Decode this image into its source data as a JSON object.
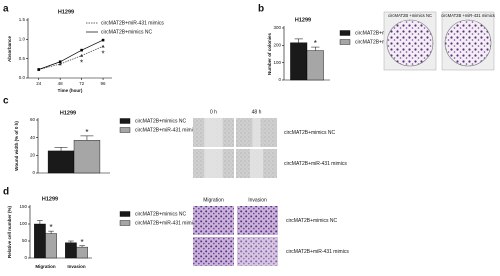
{
  "chart_data": [
    {
      "type": "line",
      "panel": "a",
      "title": "H1299",
      "x_label": "Time (hour)",
      "y_label": "Absorbance",
      "x": [
        24,
        48,
        72,
        96
      ],
      "xlim": [
        12,
        106
      ],
      "xticks": [
        24,
        48,
        72,
        96
      ],
      "ylim": [
        0,
        1.5
      ],
      "yticks": [
        {
          "value": 0,
          "label": "0.0"
        },
        0.5,
        {
          "value": 1,
          "label": "1.0"
        },
        1.5
      ],
      "series": [
        {
          "name": "circMAT2B+miR-431 mimics",
          "color": "#333333",
          "dash": true,
          "marker": "triangle",
          "values": [
            0.22,
            0.36,
            0.58,
            0.82
          ],
          "annotations": [
            null,
            null,
            "*",
            "*"
          ]
        },
        {
          "name": "circMAT2B+mimics NC",
          "color": "#000000",
          "dash": false,
          "marker": "square",
          "values": [
            0.22,
            0.42,
            0.72,
            0.98
          ]
        }
      ]
    },
    {
      "type": "bar",
      "panel": "b",
      "title": "H1299",
      "y_label": "Number of colonies",
      "categories": [
        null
      ],
      "ylim": [
        0,
        300
      ],
      "yticks": [
        0,
        100,
        200,
        300
      ],
      "series": [
        {
          "name": "circMAT2B+mimics NC",
          "color": "#1a1a1a",
          "values": [
            215
          ],
          "errors": [
            22
          ]
        },
        {
          "name": "circMAT2B+miR-431 mimics",
          "color": "#a6a6a6",
          "values": [
            170
          ],
          "errors": [
            20
          ],
          "annotations": [
            "*"
          ]
        }
      ],
      "images": {
        "columns": [
          "circMAT2B +mimics NC",
          "circMAT2B +miR-431 mimics"
        ]
      }
    },
    {
      "type": "bar",
      "panel": "c",
      "title": "H1299",
      "y_label": "Wound width (% of 0 h)",
      "categories": [
        null
      ],
      "ylim": [
        0,
        60
      ],
      "yticks": [
        0,
        20,
        40,
        60
      ],
      "series": [
        {
          "name": "circMAT2B+mimics NC",
          "color": "#1a1a1a",
          "values": [
            25
          ],
          "errors": [
            4
          ]
        },
        {
          "name": "circMAT2B+miR-431 mimics",
          "color": "#a6a6a6",
          "values": [
            37
          ],
          "errors": [
            5
          ],
          "annotations": [
            "*"
          ]
        }
      ],
      "images": {
        "columns": [
          "0 h",
          "48 h"
        ],
        "rows": [
          "circMAT2B+mimics NC",
          "circMAT2B+miR-431 mimics"
        ]
      }
    },
    {
      "type": "bar",
      "panel": "d",
      "title": "H1299",
      "y_label": "Relative cell number (%)",
      "categories": [
        "Migration",
        "Invasion"
      ],
      "ylim": [
        0,
        150
      ],
      "yticks": [
        0,
        50,
        100,
        150
      ],
      "series": [
        {
          "name": "circMAT2B+mimics NC",
          "color": "#1a1a1a",
          "values": [
            100,
            45
          ],
          "errors": [
            10,
            5
          ]
        },
        {
          "name": "circMAT2B+miR-431 mimics",
          "color": "#a6a6a6",
          "values": [
            72,
            32
          ],
          "errors": [
            7,
            4
          ],
          "annotations": [
            "*",
            "*"
          ]
        }
      ],
      "images": {
        "columns": [
          "Migration",
          "Invasion"
        ],
        "rows": [
          "circMAT2B+mimics NC",
          "circMAT2B+miR-431 mimics"
        ]
      }
    }
  ]
}
